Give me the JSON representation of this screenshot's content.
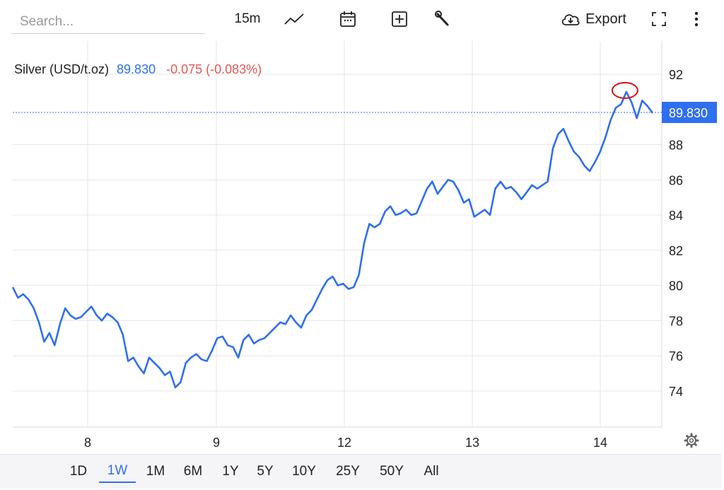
{
  "toolbar": {
    "search_placeholder": "Search...",
    "interval": "15m",
    "export_label": "Export",
    "icons": [
      "line-chart-icon",
      "calendar-icon",
      "plus-box-icon",
      "wrench-icon",
      "cloud-download-icon",
      "fullscreen-icon",
      "more-vertical-icon"
    ]
  },
  "legend": {
    "name": "Silver (USD/t.oz)",
    "price": "89.830",
    "change": "-0.075 (-0.083%)"
  },
  "price_label": "89.830",
  "colors": {
    "line": "#2f6ff0",
    "down": "#e45757",
    "annotation": "#e01010",
    "grid": "#e6e6e6"
  },
  "range_buttons": [
    "1D",
    "1W",
    "1M",
    "6M",
    "1Y",
    "5Y",
    "10Y",
    "25Y",
    "50Y",
    "All"
  ],
  "active_range": "1W",
  "chart_data": {
    "type": "line",
    "title": "",
    "xlabel": "",
    "ylabel": "",
    "x_ticks": [
      "8",
      "9",
      "12",
      "13",
      "14"
    ],
    "y_ticks": [
      "74",
      "76",
      "78",
      "80",
      "82",
      "84",
      "86",
      "88",
      "92"
    ],
    "ylim": [
      73,
      93
    ],
    "grid": true,
    "last_price_line": 89.83,
    "series": [
      {
        "values": [
          79.9,
          79.3,
          79.5,
          79.2,
          78.7,
          77.9,
          76.8,
          77.3,
          76.6,
          77.8,
          78.7,
          78.3,
          78.1,
          78.2,
          78.5,
          78.8,
          78.3,
          78.0,
          78.4,
          78.2,
          77.9,
          77.2,
          75.7,
          75.9,
          75.4,
          75.0,
          75.9,
          75.6,
          75.3,
          74.9,
          75.1,
          74.2,
          74.5,
          75.6,
          75.9,
          76.1,
          75.8,
          75.7,
          76.3,
          77.0,
          77.1,
          76.6,
          76.5,
          75.9,
          76.9,
          77.2,
          76.7,
          76.9,
          77.0,
          77.3,
          77.6,
          77.9,
          77.8,
          78.3,
          77.9,
          77.6,
          78.3,
          78.6,
          79.2,
          79.8,
          80.3,
          80.5,
          80.0,
          80.1,
          79.8,
          79.9,
          80.6,
          82.4,
          83.5,
          83.3,
          83.5,
          84.2,
          84.5,
          84.0,
          84.1,
          84.3,
          84.0,
          84.1,
          84.8,
          85.5,
          85.9,
          85.2,
          85.6,
          86.0,
          85.9,
          85.4,
          84.7,
          84.9,
          83.9,
          84.1,
          84.3,
          84.0,
          85.5,
          85.9,
          85.5,
          85.6,
          85.3,
          84.9,
          85.3,
          85.7,
          85.5,
          85.7,
          85.9,
          87.8,
          88.6,
          88.9,
          88.2,
          87.6,
          87.3,
          86.8,
          86.5,
          87.0,
          87.6,
          88.4,
          89.4,
          90.1,
          90.3,
          91.0,
          90.4,
          89.5,
          90.5,
          90.2,
          89.8
        ]
      }
    ],
    "annotations": [
      "red-circle-at-peak"
    ]
  }
}
